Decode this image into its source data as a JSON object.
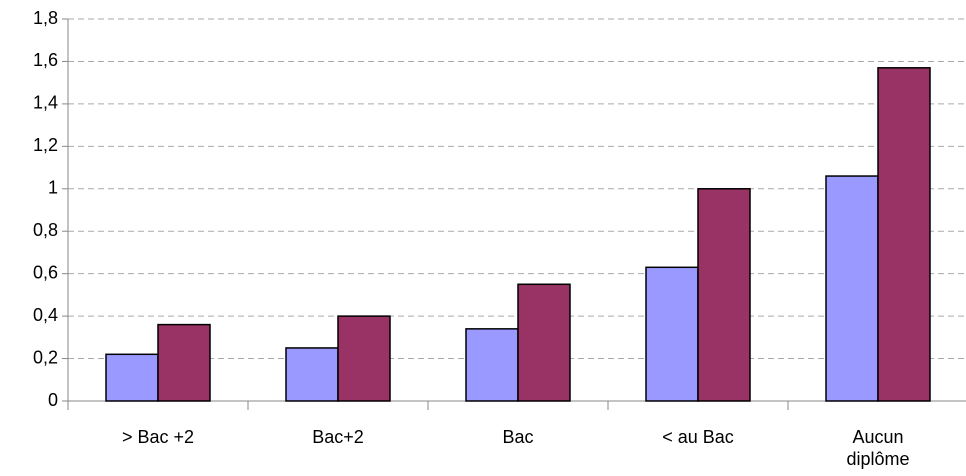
{
  "chart_data": {
    "type": "bar",
    "categories": [
      "> Bac +2",
      "Bac+2",
      "Bac",
      "< au Bac",
      "Aucun diplôme"
    ],
    "series": [
      {
        "color": "#9999ff",
        "values": [
          0.22,
          0.25,
          0.34,
          0.63,
          1.06
        ]
      },
      {
        "color": "#993366",
        "values": [
          0.36,
          0.4,
          0.55,
          1.0,
          1.57
        ]
      }
    ],
    "ylim": [
      0,
      1.8
    ],
    "yticks": [
      0,
      {
        "value": 0.2,
        "label": "0,2"
      },
      {
        "value": 0.4,
        "label": "0,4"
      },
      {
        "value": 0.6,
        "label": "0,6"
      },
      {
        "value": 0.8,
        "label": "0,8"
      },
      1,
      {
        "value": 1.2,
        "label": "1,2"
      },
      {
        "value": 1.4,
        "label": "1,4"
      },
      {
        "value": 1.6,
        "label": "1,6"
      },
      {
        "value": 1.8,
        "label": "1,8"
      }
    ],
    "grid": true
  }
}
